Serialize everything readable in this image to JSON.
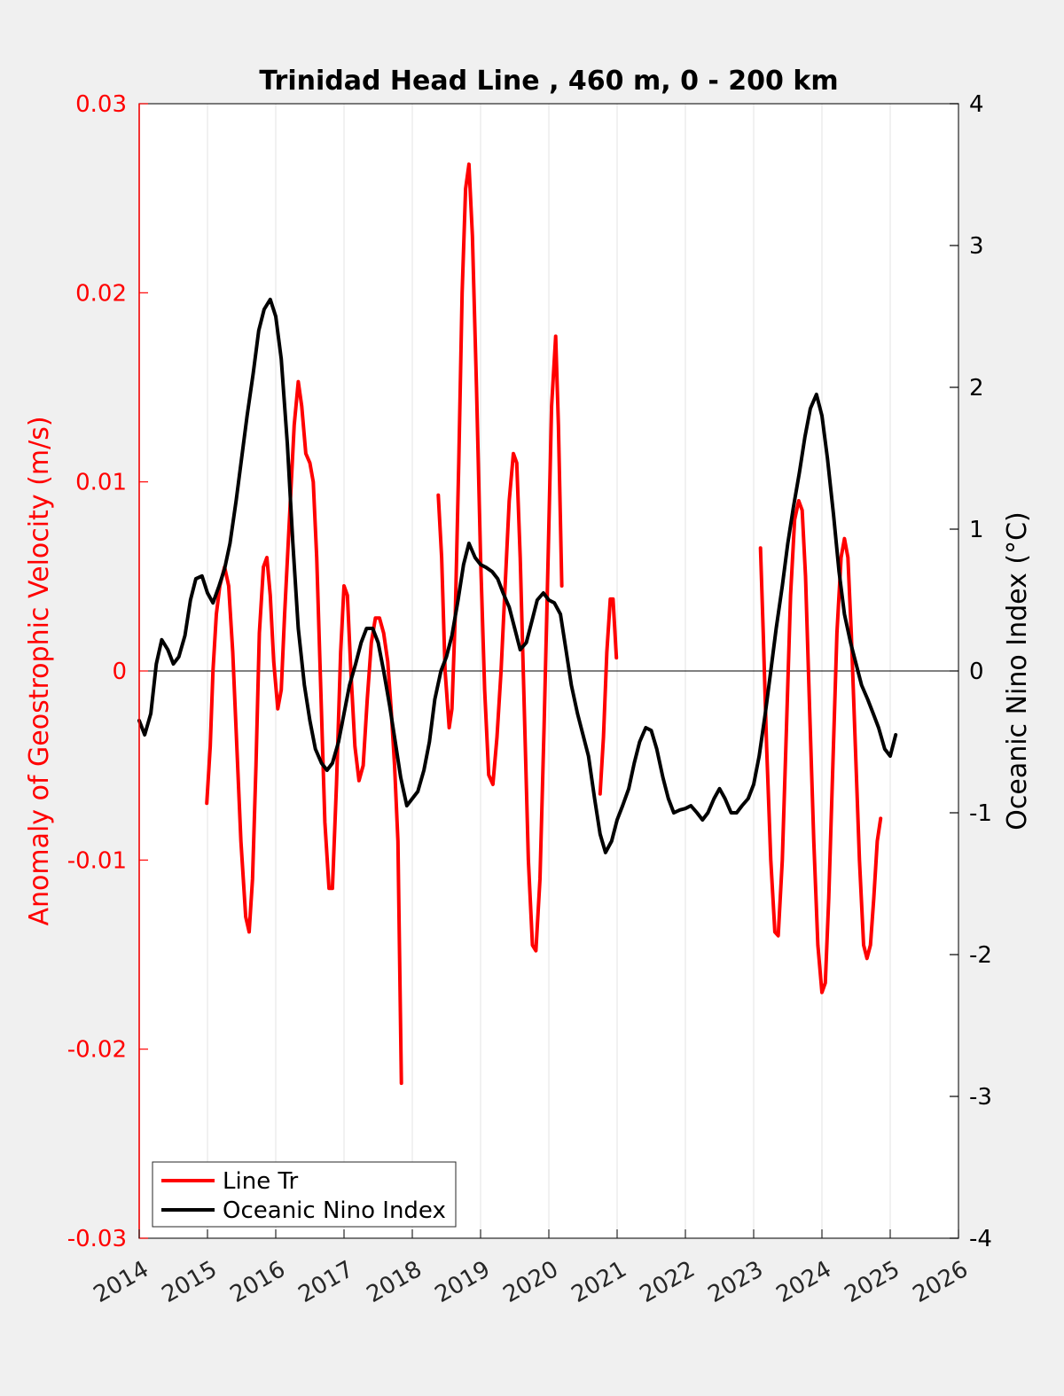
{
  "chart_data": {
    "type": "line",
    "title": "Trinidad Head Line , 460 m, 0 - 200 km",
    "ylabel_left": "Anomaly of Geostrophic Velocity (m/s)",
    "ylabel_right": "Oceanic Nino Index (°C)",
    "xlim": [
      2014,
      2026
    ],
    "ylim_left": [
      -0.03,
      0.03
    ],
    "ylim_right": [
      -4,
      4
    ],
    "x_ticks": [
      "2014",
      "2015",
      "2016",
      "2017",
      "2018",
      "2019",
      "2020",
      "2021",
      "2022",
      "2023",
      "2024",
      "2025",
      "2026"
    ],
    "y_left_ticks": [
      "-0.03",
      "-0.02",
      "-0.01",
      "0",
      "0.01",
      "0.02",
      "0.03"
    ],
    "y_right_ticks": [
      "-4",
      "-3",
      "-2",
      "-1",
      "0",
      "1",
      "2",
      "3",
      "4"
    ],
    "grid": "vertical",
    "zero_line": true,
    "legend_position": "bottom-left",
    "colors": {
      "line_tr": "#ff0000",
      "oni": "#000000",
      "left_axis": "#ff0000"
    },
    "series": [
      {
        "name": "Line Tr",
        "axis": "left",
        "segments": [
          [
            [
              2014.99,
              -0.007
            ],
            [
              2015.04,
              -0.004
            ],
            [
              2015.08,
              0.0
            ],
            [
              2015.13,
              0.003
            ],
            [
              2015.18,
              0.0045
            ],
            [
              2015.25,
              0.0055
            ],
            [
              2015.31,
              0.0045
            ],
            [
              2015.37,
              0.001
            ],
            [
              2015.43,
              -0.004
            ],
            [
              2015.49,
              -0.009
            ],
            [
              2015.56,
              -0.013
            ],
            [
              2015.61,
              -0.0138
            ],
            [
              2015.66,
              -0.011
            ],
            [
              2015.71,
              -0.005
            ],
            [
              2015.76,
              0.002
            ],
            [
              2015.82,
              0.0055
            ],
            [
              2015.87,
              0.006
            ],
            [
              2015.92,
              0.004
            ],
            [
              2015.97,
              0.0005
            ],
            [
              2016.03,
              -0.002
            ],
            [
              2016.08,
              -0.001
            ],
            [
              2016.13,
              0.003
            ],
            [
              2016.2,
              0.008
            ],
            [
              2016.27,
              0.013
            ],
            [
              2016.33,
              0.0153
            ],
            [
              2016.38,
              0.014
            ],
            [
              2016.44,
              0.0115
            ],
            [
              2016.5,
              0.011
            ],
            [
              2016.55,
              0.01
            ],
            [
              2016.6,
              0.006
            ],
            [
              2016.66,
              -0.001
            ],
            [
              2016.72,
              -0.008
            ],
            [
              2016.78,
              -0.0115
            ],
            [
              2016.83,
              -0.0115
            ],
            [
              2016.89,
              -0.006
            ],
            [
              2016.95,
              0.001
            ],
            [
              2017.0,
              0.0045
            ],
            [
              2017.05,
              0.004
            ],
            [
              2017.1,
              0.0
            ],
            [
              2017.16,
              -0.004
            ],
            [
              2017.22,
              -0.0058
            ],
            [
              2017.28,
              -0.005
            ],
            [
              2017.34,
              -0.0015
            ],
            [
              2017.4,
              0.0015
            ],
            [
              2017.46,
              0.0028
            ],
            [
              2017.52,
              0.0028
            ],
            [
              2017.58,
              0.002
            ],
            [
              2017.64,
              0.0005
            ],
            [
              2017.69,
              -0.002
            ],
            [
              2017.74,
              -0.005
            ],
            [
              2017.79,
              -0.009
            ],
            [
              2017.84,
              -0.0218
            ]
          ],
          [
            [
              2018.38,
              0.0093
            ],
            [
              2018.43,
              0.006
            ],
            [
              2018.48,
              0.0
            ],
            [
              2018.54,
              -0.003
            ],
            [
              2018.58,
              -0.002
            ],
            [
              2018.63,
              0.003
            ],
            [
              2018.68,
              0.011
            ],
            [
              2018.73,
              0.02
            ],
            [
              2018.78,
              0.0255
            ],
            [
              2018.83,
              0.0268
            ],
            [
              2018.88,
              0.023
            ],
            [
              2018.94,
              0.015
            ],
            [
              2019.0,
              0.006
            ],
            [
              2019.06,
              -0.001
            ],
            [
              2019.12,
              -0.0055
            ],
            [
              2019.18,
              -0.006
            ],
            [
              2019.24,
              -0.0035
            ],
            [
              2019.3,
              0.0
            ],
            [
              2019.36,
              0.0045
            ],
            [
              2019.42,
              0.009
            ],
            [
              2019.48,
              0.0115
            ],
            [
              2019.53,
              0.011
            ],
            [
              2019.58,
              0.006
            ],
            [
              2019.64,
              -0.002
            ],
            [
              2019.7,
              -0.01
            ],
            [
              2019.76,
              -0.0145
            ],
            [
              2019.81,
              -0.0148
            ],
            [
              2019.87,
              -0.011
            ],
            [
              2019.93,
              -0.003
            ],
            [
              2019.99,
              0.006
            ],
            [
              2020.04,
              0.014
            ],
            [
              2020.1,
              0.0177
            ],
            [
              2020.14,
              0.013
            ],
            [
              2020.19,
              0.0045
            ]
          ],
          [
            [
              2020.75,
              -0.0065
            ],
            [
              2020.8,
              -0.0035
            ],
            [
              2020.85,
              0.001
            ],
            [
              2020.9,
              0.0038
            ],
            [
              2020.94,
              0.0038
            ],
            [
              2020.99,
              0.0007
            ]
          ],
          [
            [
              2023.1,
              0.0065
            ],
            [
              2023.14,
              0.002
            ],
            [
              2023.19,
              -0.004
            ],
            [
              2023.25,
              -0.01
            ],
            [
              2023.31,
              -0.0138
            ],
            [
              2023.36,
              -0.014
            ],
            [
              2023.42,
              -0.01
            ],
            [
              2023.48,
              -0.003
            ],
            [
              2023.54,
              0.004
            ],
            [
              2023.6,
              0.008
            ],
            [
              2023.66,
              0.009
            ],
            [
              2023.71,
              0.0085
            ],
            [
              2023.76,
              0.005
            ],
            [
              2023.82,
              -0.002
            ],
            [
              2023.88,
              -0.009
            ],
            [
              2023.94,
              -0.0145
            ],
            [
              2024.0,
              -0.017
            ],
            [
              2024.05,
              -0.0165
            ],
            [
              2024.1,
              -0.012
            ],
            [
              2024.16,
              -0.005
            ],
            [
              2024.22,
              0.002
            ],
            [
              2024.28,
              0.006
            ],
            [
              2024.33,
              0.007
            ],
            [
              2024.38,
              0.006
            ],
            [
              2024.43,
              0.002
            ],
            [
              2024.49,
              -0.004
            ],
            [
              2024.55,
              -0.01
            ],
            [
              2024.61,
              -0.0145
            ],
            [
              2024.66,
              -0.0152
            ],
            [
              2024.71,
              -0.0145
            ],
            [
              2024.76,
              -0.012
            ],
            [
              2024.81,
              -0.009
            ],
            [
              2024.86,
              -0.0078
            ]
          ]
        ]
      },
      {
        "name": "Oceanic Nino Index",
        "axis": "right",
        "points": [
          [
            2014.0,
            -0.35
          ],
          [
            2014.08,
            -0.45
          ],
          [
            2014.17,
            -0.3
          ],
          [
            2014.25,
            0.05
          ],
          [
            2014.33,
            0.22
          ],
          [
            2014.42,
            0.15
          ],
          [
            2014.5,
            0.05
          ],
          [
            2014.58,
            0.1
          ],
          [
            2014.67,
            0.25
          ],
          [
            2014.75,
            0.5
          ],
          [
            2014.83,
            0.65
          ],
          [
            2014.92,
            0.67
          ],
          [
            2015.0,
            0.55
          ],
          [
            2015.08,
            0.48
          ],
          [
            2015.17,
            0.6
          ],
          [
            2015.25,
            0.72
          ],
          [
            2015.33,
            0.9
          ],
          [
            2015.42,
            1.2
          ],
          [
            2015.5,
            1.5
          ],
          [
            2015.58,
            1.8
          ],
          [
            2015.67,
            2.1
          ],
          [
            2015.75,
            2.4
          ],
          [
            2015.83,
            2.55
          ],
          [
            2015.92,
            2.62
          ],
          [
            2016.0,
            2.5
          ],
          [
            2016.08,
            2.2
          ],
          [
            2016.17,
            1.6
          ],
          [
            2016.25,
            0.9
          ],
          [
            2016.33,
            0.3
          ],
          [
            2016.42,
            -0.1
          ],
          [
            2016.5,
            -0.35
          ],
          [
            2016.58,
            -0.55
          ],
          [
            2016.67,
            -0.65
          ],
          [
            2016.75,
            -0.7
          ],
          [
            2016.83,
            -0.65
          ],
          [
            2016.92,
            -0.5
          ],
          [
            2017.0,
            -0.3
          ],
          [
            2017.08,
            -0.1
          ],
          [
            2017.17,
            0.05
          ],
          [
            2017.25,
            0.2
          ],
          [
            2017.33,
            0.3
          ],
          [
            2017.42,
            0.3
          ],
          [
            2017.5,
            0.2
          ],
          [
            2017.58,
            0.0
          ],
          [
            2017.67,
            -0.25
          ],
          [
            2017.75,
            -0.5
          ],
          [
            2017.83,
            -0.75
          ],
          [
            2017.92,
            -0.95
          ],
          [
            2018.0,
            -0.9
          ],
          [
            2018.08,
            -0.85
          ],
          [
            2018.17,
            -0.7
          ],
          [
            2018.25,
            -0.5
          ],
          [
            2018.33,
            -0.2
          ],
          [
            2018.42,
            0.0
          ],
          [
            2018.5,
            0.1
          ],
          [
            2018.58,
            0.25
          ],
          [
            2018.67,
            0.5
          ],
          [
            2018.75,
            0.75
          ],
          [
            2018.83,
            0.9
          ],
          [
            2018.92,
            0.8
          ],
          [
            2019.0,
            0.75
          ],
          [
            2019.08,
            0.73
          ],
          [
            2019.17,
            0.7
          ],
          [
            2019.25,
            0.65
          ],
          [
            2019.33,
            0.55
          ],
          [
            2019.42,
            0.45
          ],
          [
            2019.5,
            0.3
          ],
          [
            2019.58,
            0.15
          ],
          [
            2019.67,
            0.2
          ],
          [
            2019.75,
            0.35
          ],
          [
            2019.83,
            0.5
          ],
          [
            2019.92,
            0.55
          ],
          [
            2020.0,
            0.5
          ],
          [
            2020.08,
            0.48
          ],
          [
            2020.17,
            0.4
          ],
          [
            2020.25,
            0.15
          ],
          [
            2020.33,
            -0.1
          ],
          [
            2020.42,
            -0.3
          ],
          [
            2020.5,
            -0.45
          ],
          [
            2020.58,
            -0.6
          ],
          [
            2020.67,
            -0.9
          ],
          [
            2020.75,
            -1.15
          ],
          [
            2020.83,
            -1.28
          ],
          [
            2020.92,
            -1.2
          ],
          [
            2021.0,
            -1.05
          ],
          [
            2021.08,
            -0.95
          ],
          [
            2021.17,
            -0.83
          ],
          [
            2021.25,
            -0.65
          ],
          [
            2021.33,
            -0.5
          ],
          [
            2021.42,
            -0.4
          ],
          [
            2021.5,
            -0.42
          ],
          [
            2021.58,
            -0.55
          ],
          [
            2021.67,
            -0.75
          ],
          [
            2021.75,
            -0.9
          ],
          [
            2021.83,
            -1.0
          ],
          [
            2021.92,
            -0.98
          ],
          [
            2022.0,
            -0.97
          ],
          [
            2022.08,
            -0.95
          ],
          [
            2022.17,
            -1.0
          ],
          [
            2022.25,
            -1.05
          ],
          [
            2022.33,
            -1.0
          ],
          [
            2022.42,
            -0.9
          ],
          [
            2022.5,
            -0.83
          ],
          [
            2022.58,
            -0.9
          ],
          [
            2022.67,
            -1.0
          ],
          [
            2022.75,
            -1.0
          ],
          [
            2022.83,
            -0.95
          ],
          [
            2022.92,
            -0.9
          ],
          [
            2023.0,
            -0.8
          ],
          [
            2023.08,
            -0.6
          ],
          [
            2023.17,
            -0.3
          ],
          [
            2023.25,
            0.0
          ],
          [
            2023.33,
            0.3
          ],
          [
            2023.42,
            0.6
          ],
          [
            2023.5,
            0.9
          ],
          [
            2023.58,
            1.15
          ],
          [
            2023.67,
            1.4
          ],
          [
            2023.75,
            1.65
          ],
          [
            2023.83,
            1.85
          ],
          [
            2023.92,
            1.95
          ],
          [
            2024.0,
            1.8
          ],
          [
            2024.08,
            1.5
          ],
          [
            2024.17,
            1.1
          ],
          [
            2024.25,
            0.7
          ],
          [
            2024.33,
            0.4
          ],
          [
            2024.42,
            0.2
          ],
          [
            2024.5,
            0.05
          ],
          [
            2024.58,
            -0.1
          ],
          [
            2024.67,
            -0.2
          ],
          [
            2024.75,
            -0.3
          ],
          [
            2024.83,
            -0.4
          ],
          [
            2024.92,
            -0.55
          ],
          [
            2025.0,
            -0.6
          ],
          [
            2025.08,
            -0.45
          ]
        ]
      }
    ]
  }
}
